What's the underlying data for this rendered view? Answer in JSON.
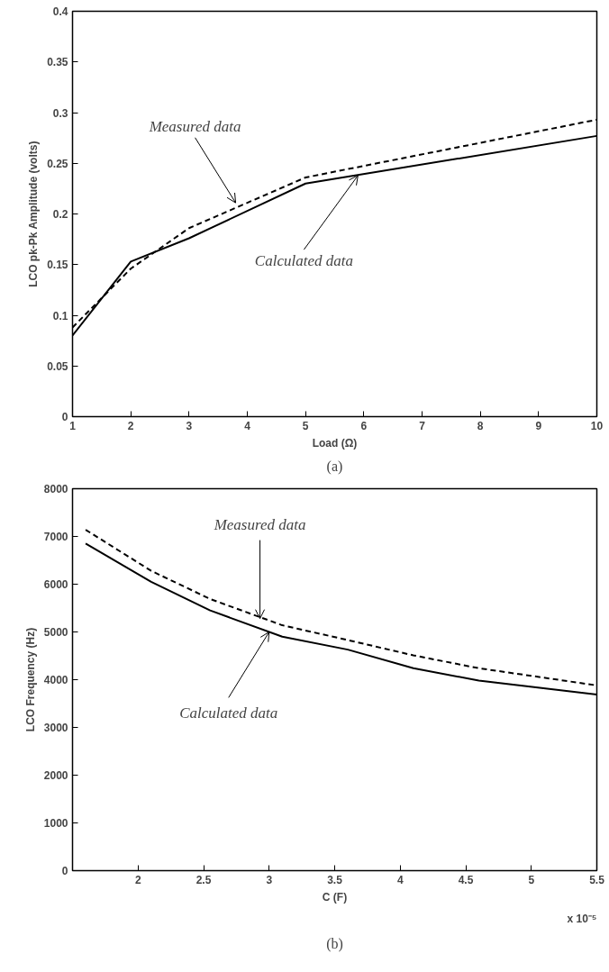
{
  "chart_data": [
    {
      "type": "line",
      "subtitle": "(a)",
      "xlabel": "Load (Ω)",
      "ylabel": "LCO pk-Pk Amplitude (volts)",
      "x": [
        1,
        2,
        3,
        5,
        10
      ],
      "series": [
        {
          "color": "#000000",
          "line_style": "solid",
          "values": [
            0.08,
            0.153,
            0.176,
            0.23,
            0.277
          ]
        },
        {
          "color": "#000000",
          "line_style": "dashed",
          "values": [
            0.088,
            0.146,
            0.186,
            0.236,
            0.293
          ]
        }
      ],
      "xlim": [
        1,
        10
      ],
      "xticks": [
        1,
        2,
        3,
        4,
        5,
        6,
        7,
        8,
        9,
        10
      ],
      "ylim": [
        0,
        0.4
      ],
      "yticks": [
        0,
        0.05,
        0.1,
        0.15,
        0.2,
        0.25,
        0.3,
        0.35,
        0.4
      ],
      "grid": false,
      "annotations": [
        {
          "text": "Measured data",
          "x": 3.8,
          "y": 0.211
        },
        {
          "text": "Calculated data",
          "x": 5.9,
          "y": 0.238
        }
      ]
    },
    {
      "type": "line",
      "subtitle": "(b)",
      "xlabel": "C (F)",
      "ylabel": "LCO Frequency (Hz)",
      "x": [
        1.6,
        2.1,
        2.55,
        3.1,
        3.6,
        4.1,
        4.6,
        5.5
      ],
      "series": [
        {
          "color": "#000000",
          "line_style": "solid",
          "values": [
            6850,
            6050,
            5450,
            4900,
            4630,
            4240,
            3980,
            3690
          ]
        },
        {
          "color": "#000000",
          "line_style": "dashed",
          "values": [
            7140,
            6280,
            5690,
            5140,
            4830,
            4510,
            4240,
            3880
          ]
        }
      ],
      "xlim": [
        1.5,
        5.5
      ],
      "xticks": [
        2,
        2.5,
        3,
        3.5,
        4,
        4.5,
        5,
        5.5
      ],
      "ylim": [
        0,
        8000
      ],
      "yticks": [
        0,
        1000,
        2000,
        3000,
        4000,
        5000,
        6000,
        7000,
        8000
      ],
      "grid": false,
      "annotations": [
        "x 10⁻⁵",
        {
          "text": "Measured data",
          "x": 2.93,
          "y": 5280
        },
        {
          "text": "Calculated data",
          "x": 3.0,
          "y": 5000
        }
      ]
    }
  ]
}
